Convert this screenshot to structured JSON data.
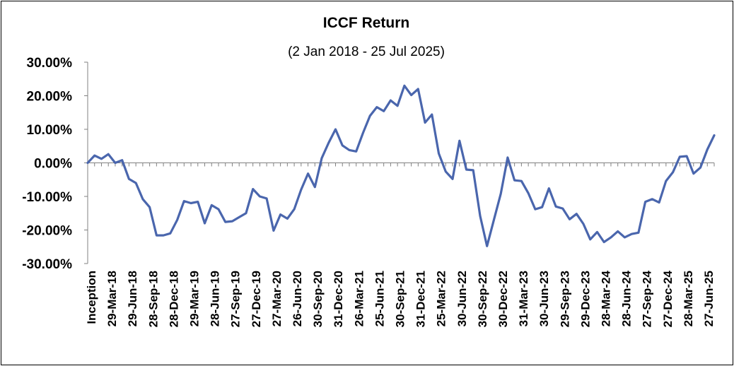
{
  "chart_data": {
    "type": "line",
    "title": "ICCF Return",
    "subtitle": "(2 Jan 2018 - 25 Jul 2025)",
    "xlabel": "",
    "ylabel": "",
    "ylim": [
      -30,
      30
    ],
    "y_ticks": [
      "30.00%",
      "20.00%",
      "10.00%",
      "0.00%",
      "-10.00%",
      "-20.00%",
      "-30.00%"
    ],
    "y_tick_values": [
      30,
      20,
      10,
      0,
      -10,
      -20,
      -30
    ],
    "grid": false,
    "legend": "none",
    "line_color": "#4a66ad",
    "axis_color": "#808080",
    "x_tick_labels": [
      "Inception",
      "29-Mar-18",
      "29-Jun-18",
      "28-Sep-18",
      "28-Dec-18",
      "29-Mar-19",
      "28-Jun-19",
      "27-Sep-19",
      "27-Dec-19",
      "27-Mar-20",
      "26-Jun-20",
      "30-Sep-20",
      "31-Dec-20",
      "26-Mar-21",
      "25-Jun-21",
      "30-Sep-21",
      "31-Dec-21",
      "25-Mar-22",
      "30-Jun-22",
      "30-Sep-22",
      "30-Dec-22",
      "31-Mar-23",
      "30-Jun-23",
      "29-Sep-23",
      "29-Dec-23",
      "28-Mar-24",
      "28-Jun-24",
      "27-Sep-24",
      "27-Dec-24",
      "28-Mar-25",
      "27-Jun-25"
    ],
    "series": [
      {
        "values": [
          0.0,
          2.2,
          1.2,
          2.6,
          0.0,
          0.8,
          -4.8,
          -6.0,
          -10.8,
          -13.2,
          -21.6,
          -21.6,
          -21.0,
          -17.0,
          -11.4,
          -12.0,
          -11.6,
          -18.0,
          -12.6,
          -13.8,
          -17.6,
          -17.4,
          -16.2,
          -15.0,
          -7.8,
          -10.0,
          -10.6,
          -20.2,
          -15.4,
          -16.6,
          -13.8,
          -8.0,
          -3.2,
          -7.2,
          1.4,
          6.0,
          10.0,
          5.2,
          3.8,
          3.4,
          9.0,
          14.0,
          16.6,
          15.4,
          18.6,
          17.0,
          23.0,
          20.2,
          22.0,
          12.0,
          14.4,
          2.8,
          -2.6,
          -4.8,
          6.6,
          -2.0,
          -2.2,
          -15.8,
          -24.8,
          -17.0,
          -9.2,
          1.6,
          -5.2,
          -5.4,
          -9.0,
          -13.8,
          -13.2,
          -7.6,
          -13.0,
          -13.6,
          -16.8,
          -15.2,
          -18.2,
          -22.8,
          -20.6,
          -23.6,
          -22.2,
          -20.4,
          -22.2,
          -21.2,
          -20.8,
          -11.6,
          -10.8,
          -11.8,
          -5.4,
          -2.8,
          1.8,
          2.0,
          -3.2,
          -1.4,
          4.0,
          8.2
        ]
      }
    ]
  }
}
